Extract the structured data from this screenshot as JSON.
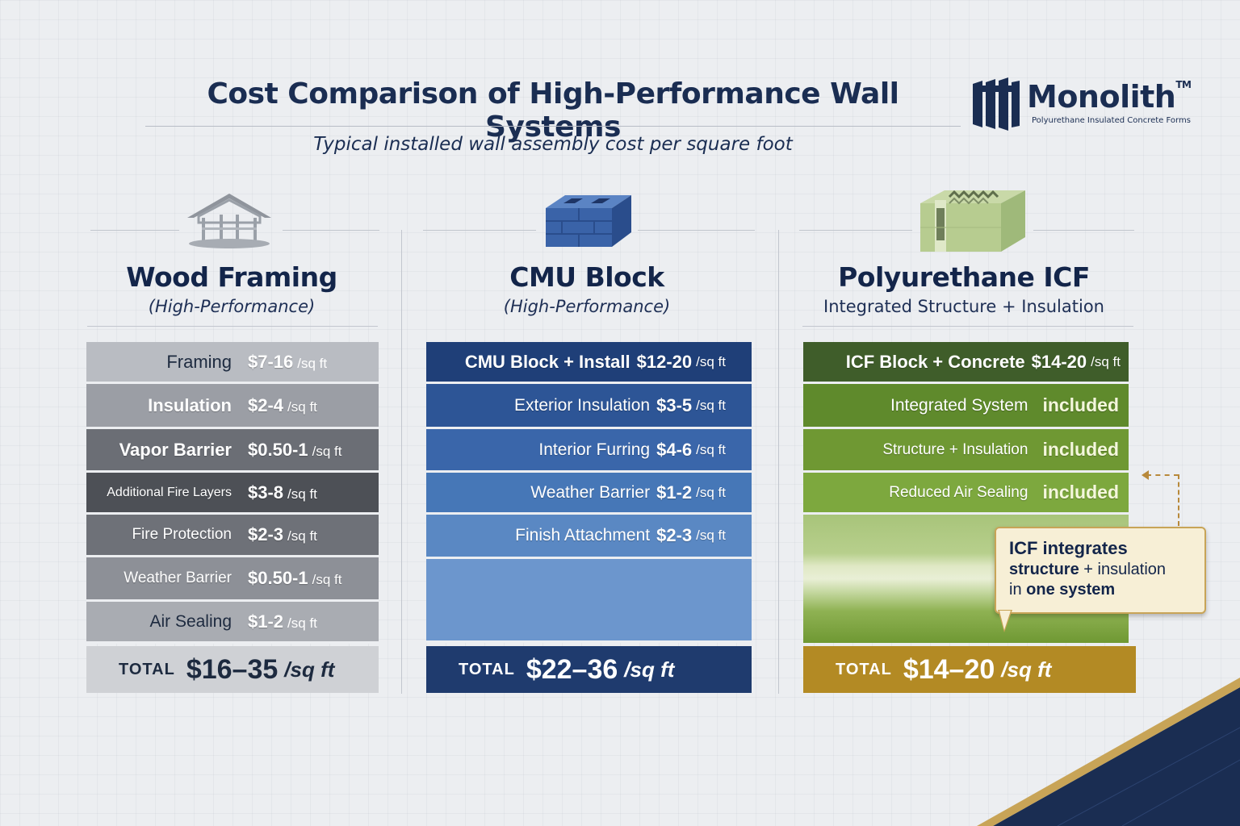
{
  "header": {
    "title": "Cost Comparison of High-Performance Wall Systems",
    "subtitle": "Typical installed wall assembly cost per square foot"
  },
  "logo": {
    "name": "Monolith",
    "trademark": "TM",
    "tagline": "Polyurethane Insulated Concrete Forms",
    "icon": "monolith-logo-icon",
    "color": "#1a2d52"
  },
  "unit": "/sq ft",
  "total_label": "TOTAL",
  "wood": {
    "icon": "house-frame-icon",
    "title": "Wood Framing",
    "subtitle": "(High-Performance)",
    "rows": [
      {
        "label": "Framing",
        "value": "$7-16",
        "color": "#b9bcc2"
      },
      {
        "label": "Insulation",
        "value": "$2-4",
        "color": "#9b9ea5"
      },
      {
        "label": "Vapor Barrier",
        "value": "$0.50-1",
        "color": "#6b6e75"
      },
      {
        "label": "Additional Fire Layers",
        "value": "$3-8",
        "color": "#4d5056"
      },
      {
        "label": "Fire Protection",
        "value": "$2-3",
        "color": "#6e7178"
      },
      {
        "label": "Weather Barrier",
        "value": "$0.50-1",
        "color": "#8d9097"
      },
      {
        "label": "Air Sealing",
        "value": "$1-2",
        "color": "#a9acb2"
      }
    ],
    "total": "$16–35",
    "total_unit": "/sq ft",
    "total_color": "#cfd1d5"
  },
  "cmu": {
    "icon": "cmu-block-icon",
    "title": "CMU Block",
    "subtitle": "(High-Performance)",
    "rows": [
      {
        "label": "CMU Block + Install",
        "value": "$12-20",
        "color": "#1f3f78"
      },
      {
        "label": "Exterior Insulation",
        "value": "$3-5",
        "color": "#2d5596"
      },
      {
        "label": "Interior Furring",
        "value": "$4-6",
        "color": "#3a66aa"
      },
      {
        "label": "Weather Barrier",
        "value": "$1-2",
        "color": "#4677b7"
      },
      {
        "label": "Finish Attachment",
        "value": "$2-3",
        "color": "#5a88c3"
      }
    ],
    "filler_color": "#6c96cd",
    "total": "$22–36",
    "total_unit": "/sq ft",
    "total_color": "#1f3b6e"
  },
  "icf": {
    "icon": "icf-block-icon",
    "title": "Polyurethane ICF",
    "subtitle": "Integrated Structure + Insulation",
    "rows": [
      {
        "label": "ICF Block + Concrete",
        "value": "$14-20",
        "color": "#3f5d2a"
      },
      {
        "label": "Integrated System",
        "value": "included",
        "color": "#5f8a2c"
      },
      {
        "label": "Structure + Insulation",
        "value": "included",
        "color": "#6f9833"
      },
      {
        "label": "Reduced Air Sealing",
        "value": "included",
        "color": "#7da83e"
      }
    ],
    "filler_color": "#a8c47a",
    "total": "$14–20",
    "total_unit": "/sq ft",
    "total_color": "#b38a24"
  },
  "callout": {
    "line1": "ICF integrates",
    "line2_bold": "structure",
    "line2_rest": "+ insulation",
    "line3_pre": "in",
    "line3_bold": "one system"
  },
  "accent": {
    "navy": "#1a2d52",
    "gold": "#c8a457"
  }
}
